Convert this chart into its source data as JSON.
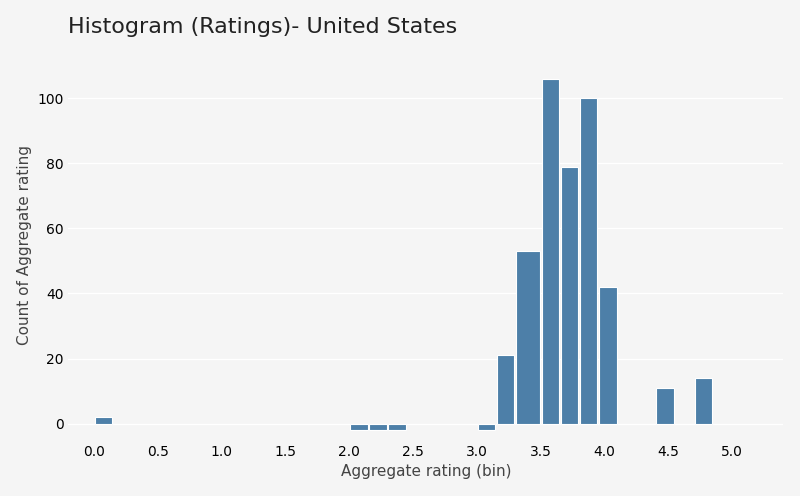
{
  "title": "Histogram (Ratings)- United States",
  "xlabel": "Aggregate rating (bin)",
  "ylabel": "Count of Aggregate rating",
  "bar_color": "#4d7fa8",
  "background_color": "#f5f5f5",
  "grid_color": "#ffffff",
  "bins": [
    0.0,
    0.15,
    2.0,
    2.15,
    2.3,
    2.45,
    3.0,
    3.15,
    3.3,
    3.5,
    3.65,
    3.8,
    3.95,
    4.1,
    4.25,
    4.4,
    4.55,
    4.7,
    4.85,
    5.0,
    5.15
  ],
  "heights": [
    2,
    0,
    -2,
    -2,
    -2,
    0,
    -2,
    21,
    53,
    106,
    79,
    100,
    42,
    0,
    0,
    11,
    0,
    14,
    0,
    0
  ],
  "xlim": [
    -0.2,
    5.4
  ],
  "ylim": [
    -5,
    115
  ],
  "yticks": [
    0,
    20,
    40,
    60,
    80,
    100
  ],
  "xticks": [
    0.0,
    0.5,
    1.0,
    1.5,
    2.0,
    2.5,
    3.0,
    3.5,
    4.0,
    4.5,
    5.0
  ],
  "title_fontsize": 16,
  "label_fontsize": 11
}
